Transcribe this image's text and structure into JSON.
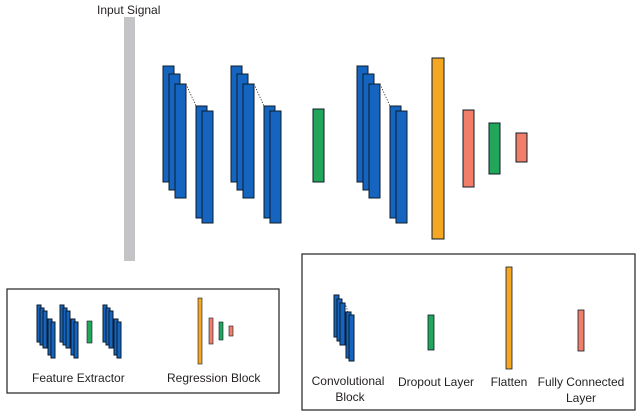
{
  "title": "Input Signal",
  "colors": {
    "input_signal": "#c4c4c6",
    "conv_block": "#1565c0",
    "conv_outline": "#0d1b2a",
    "dropout": "#21a65a",
    "flatten": "#f5a623",
    "fully_connected": "#f07e68",
    "frame": "#231f20"
  },
  "left_legend": {
    "feature_extractor": "Feature Extractor",
    "regression_block": "Regression Block"
  },
  "right_legend": {
    "conv_line1": "Convolutional",
    "conv_line2": "Block",
    "dropout": "Dropout Layer",
    "flatten": "Flatten",
    "fc_line1": "Fully Connected",
    "fc_line2": "Layer"
  }
}
